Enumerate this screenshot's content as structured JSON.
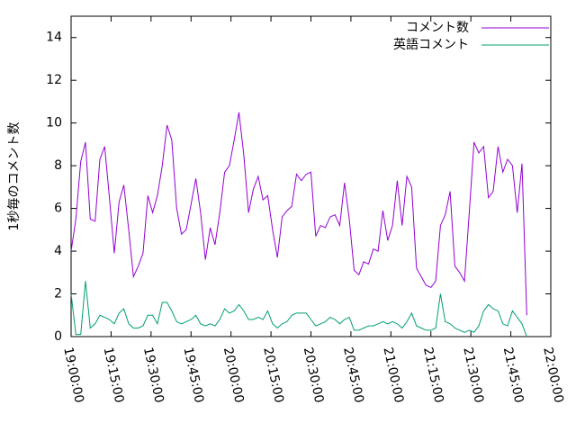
{
  "chart_data": {
    "type": "line",
    "ylabel": "1秒毎のコメント数",
    "x": [
      "19:00:00",
      "19:01:48",
      "19:03:36",
      "19:05:24",
      "19:07:12",
      "19:09:00",
      "19:10:48",
      "19:12:36",
      "19:14:24",
      "19:16:12",
      "19:18:00",
      "19:19:48",
      "19:21:36",
      "19:23:24",
      "19:25:12",
      "19:27:00",
      "19:28:48",
      "19:30:36",
      "19:32:24",
      "19:34:12",
      "19:36:00",
      "19:37:48",
      "19:39:36",
      "19:41:24",
      "19:43:12",
      "19:45:00",
      "19:46:48",
      "19:48:36",
      "19:50:24",
      "19:52:12",
      "19:54:00",
      "19:55:48",
      "19:57:36",
      "19:59:24",
      "20:01:12",
      "20:03:00",
      "20:04:48",
      "20:06:36",
      "20:08:24",
      "20:10:12",
      "20:12:00",
      "20:13:48",
      "20:15:36",
      "20:17:24",
      "20:19:12",
      "20:21:00",
      "20:22:48",
      "20:24:36",
      "20:26:24",
      "20:28:12",
      "20:30:00",
      "20:31:48",
      "20:33:36",
      "20:35:24",
      "20:37:12",
      "20:39:00",
      "20:40:48",
      "20:42:36",
      "20:44:24",
      "20:46:12",
      "20:48:00",
      "20:49:48",
      "20:51:36",
      "20:53:24",
      "20:55:12",
      "20:57:00",
      "20:58:48",
      "21:00:36",
      "21:02:24",
      "21:04:12",
      "21:06:00",
      "21:07:48",
      "21:09:36",
      "21:11:24",
      "21:13:12",
      "21:15:00",
      "21:16:48",
      "21:18:36",
      "21:20:24",
      "21:22:12",
      "21:24:00",
      "21:25:48",
      "21:27:36",
      "21:29:24",
      "21:31:12",
      "21:33:00",
      "21:34:48",
      "21:36:36",
      "21:38:24",
      "21:40:12",
      "21:42:00",
      "21:43:48",
      "21:45:36",
      "21:47:24",
      "21:49:12",
      "21:51:00"
    ],
    "series": [
      {
        "name": "コメント数",
        "color": "#9400d3",
        "values": [
          4.0,
          5.5,
          8.2,
          9.1,
          5.5,
          5.4,
          8.3,
          8.9,
          6.5,
          3.9,
          6.3,
          7.1,
          5.0,
          2.8,
          3.3,
          3.9,
          6.6,
          5.8,
          6.6,
          8.0,
          9.9,
          9.2,
          6.0,
          4.8,
          5.0,
          6.2,
          7.4,
          5.8,
          3.6,
          5.1,
          4.3,
          5.8,
          7.7,
          8.0,
          9.2,
          10.5,
          8.5,
          5.8,
          6.9,
          7.5,
          6.4,
          6.6,
          5.0,
          3.7,
          5.6,
          5.9,
          6.1,
          7.6,
          7.3,
          7.6,
          7.7,
          4.7,
          5.2,
          5.1,
          5.6,
          5.7,
          5.2,
          7.2,
          5.5,
          3.1,
          2.9,
          3.5,
          3.4,
          4.1,
          4.0,
          5.9,
          4.5,
          5.2,
          7.3,
          5.2,
          7.5,
          7.0,
          3.2,
          2.8,
          2.4,
          2.3,
          2.6,
          5.2,
          5.7,
          6.8,
          3.3,
          3.0,
          2.6,
          5.8,
          9.1,
          8.6,
          8.9,
          6.5,
          6.8,
          8.9,
          7.7,
          8.3,
          8.0,
          5.8,
          8.1,
          1.0
        ]
      },
      {
        "name": "英語コメント",
        "color": "#009e73",
        "values": [
          2.0,
          0.1,
          0.1,
          2.6,
          0.4,
          0.6,
          1.0,
          0.9,
          0.8,
          0.6,
          1.1,
          1.3,
          0.6,
          0.4,
          0.4,
          0.5,
          1.0,
          1.0,
          0.6,
          1.6,
          1.6,
          1.2,
          0.7,
          0.6,
          0.7,
          0.8,
          1.0,
          0.6,
          0.5,
          0.6,
          0.5,
          0.8,
          1.3,
          1.1,
          1.2,
          1.5,
          1.2,
          0.8,
          0.8,
          0.9,
          0.8,
          1.2,
          0.6,
          0.4,
          0.6,
          0.7,
          1.0,
          1.1,
          1.1,
          1.1,
          0.8,
          0.5,
          0.6,
          0.7,
          0.9,
          0.8,
          0.6,
          0.8,
          0.9,
          0.3,
          0.3,
          0.4,
          0.5,
          0.5,
          0.6,
          0.7,
          0.6,
          0.7,
          0.6,
          0.4,
          0.7,
          1.1,
          0.5,
          0.4,
          0.3,
          0.3,
          0.4,
          2.0,
          0.7,
          0.6,
          0.4,
          0.3,
          0.2,
          0.3,
          0.2,
          0.5,
          1.2,
          1.5,
          1.3,
          1.2,
          0.6,
          0.5,
          1.2,
          0.9,
          0.6,
          0.0
        ]
      }
    ],
    "xlim": [
      "19:00:00",
      "22:00:00"
    ],
    "xticks": [
      "19:00:00",
      "19:15:00",
      "19:30:00",
      "19:45:00",
      "20:00:00",
      "20:15:00",
      "20:30:00",
      "20:45:00",
      "21:00:00",
      "21:15:00",
      "21:30:00",
      "21:45:00",
      "22:00:00"
    ],
    "ylim": [
      0,
      15
    ],
    "yticks": [
      0,
      2,
      4,
      6,
      8,
      10,
      12,
      14
    ],
    "legend": "upper right"
  }
}
